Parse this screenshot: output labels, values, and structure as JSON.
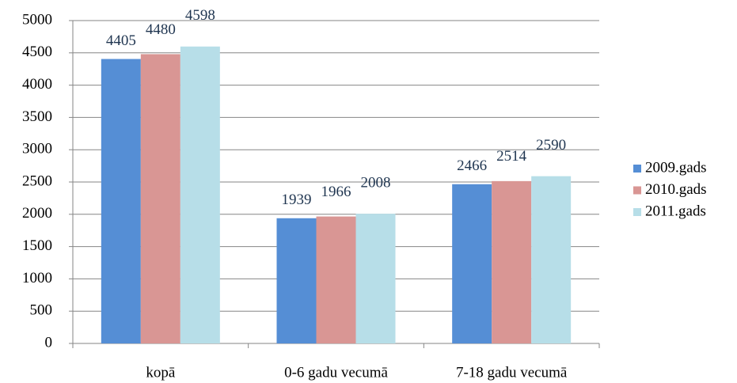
{
  "chart_data": {
    "type": "bar",
    "categories": [
      "kopā",
      "0-6 gadu vecumā",
      "7-18 gadu vecumā"
    ],
    "series": [
      {
        "name": "2009.gads",
        "color": "#558ed5",
        "values": [
          4405,
          1939,
          2466
        ]
      },
      {
        "name": "2010.gads",
        "color": "#d99694",
        "values": [
          4480,
          1966,
          2514
        ]
      },
      {
        "name": "2011.gads",
        "color": "#b7dee8",
        "values": [
          4598,
          2008,
          2590
        ]
      }
    ],
    "ylim": [
      0,
      5000
    ],
    "yticks": [
      0,
      500,
      1000,
      1500,
      2000,
      2500,
      3000,
      3500,
      4000,
      4500,
      5000
    ],
    "grid": true,
    "legend": "right"
  }
}
